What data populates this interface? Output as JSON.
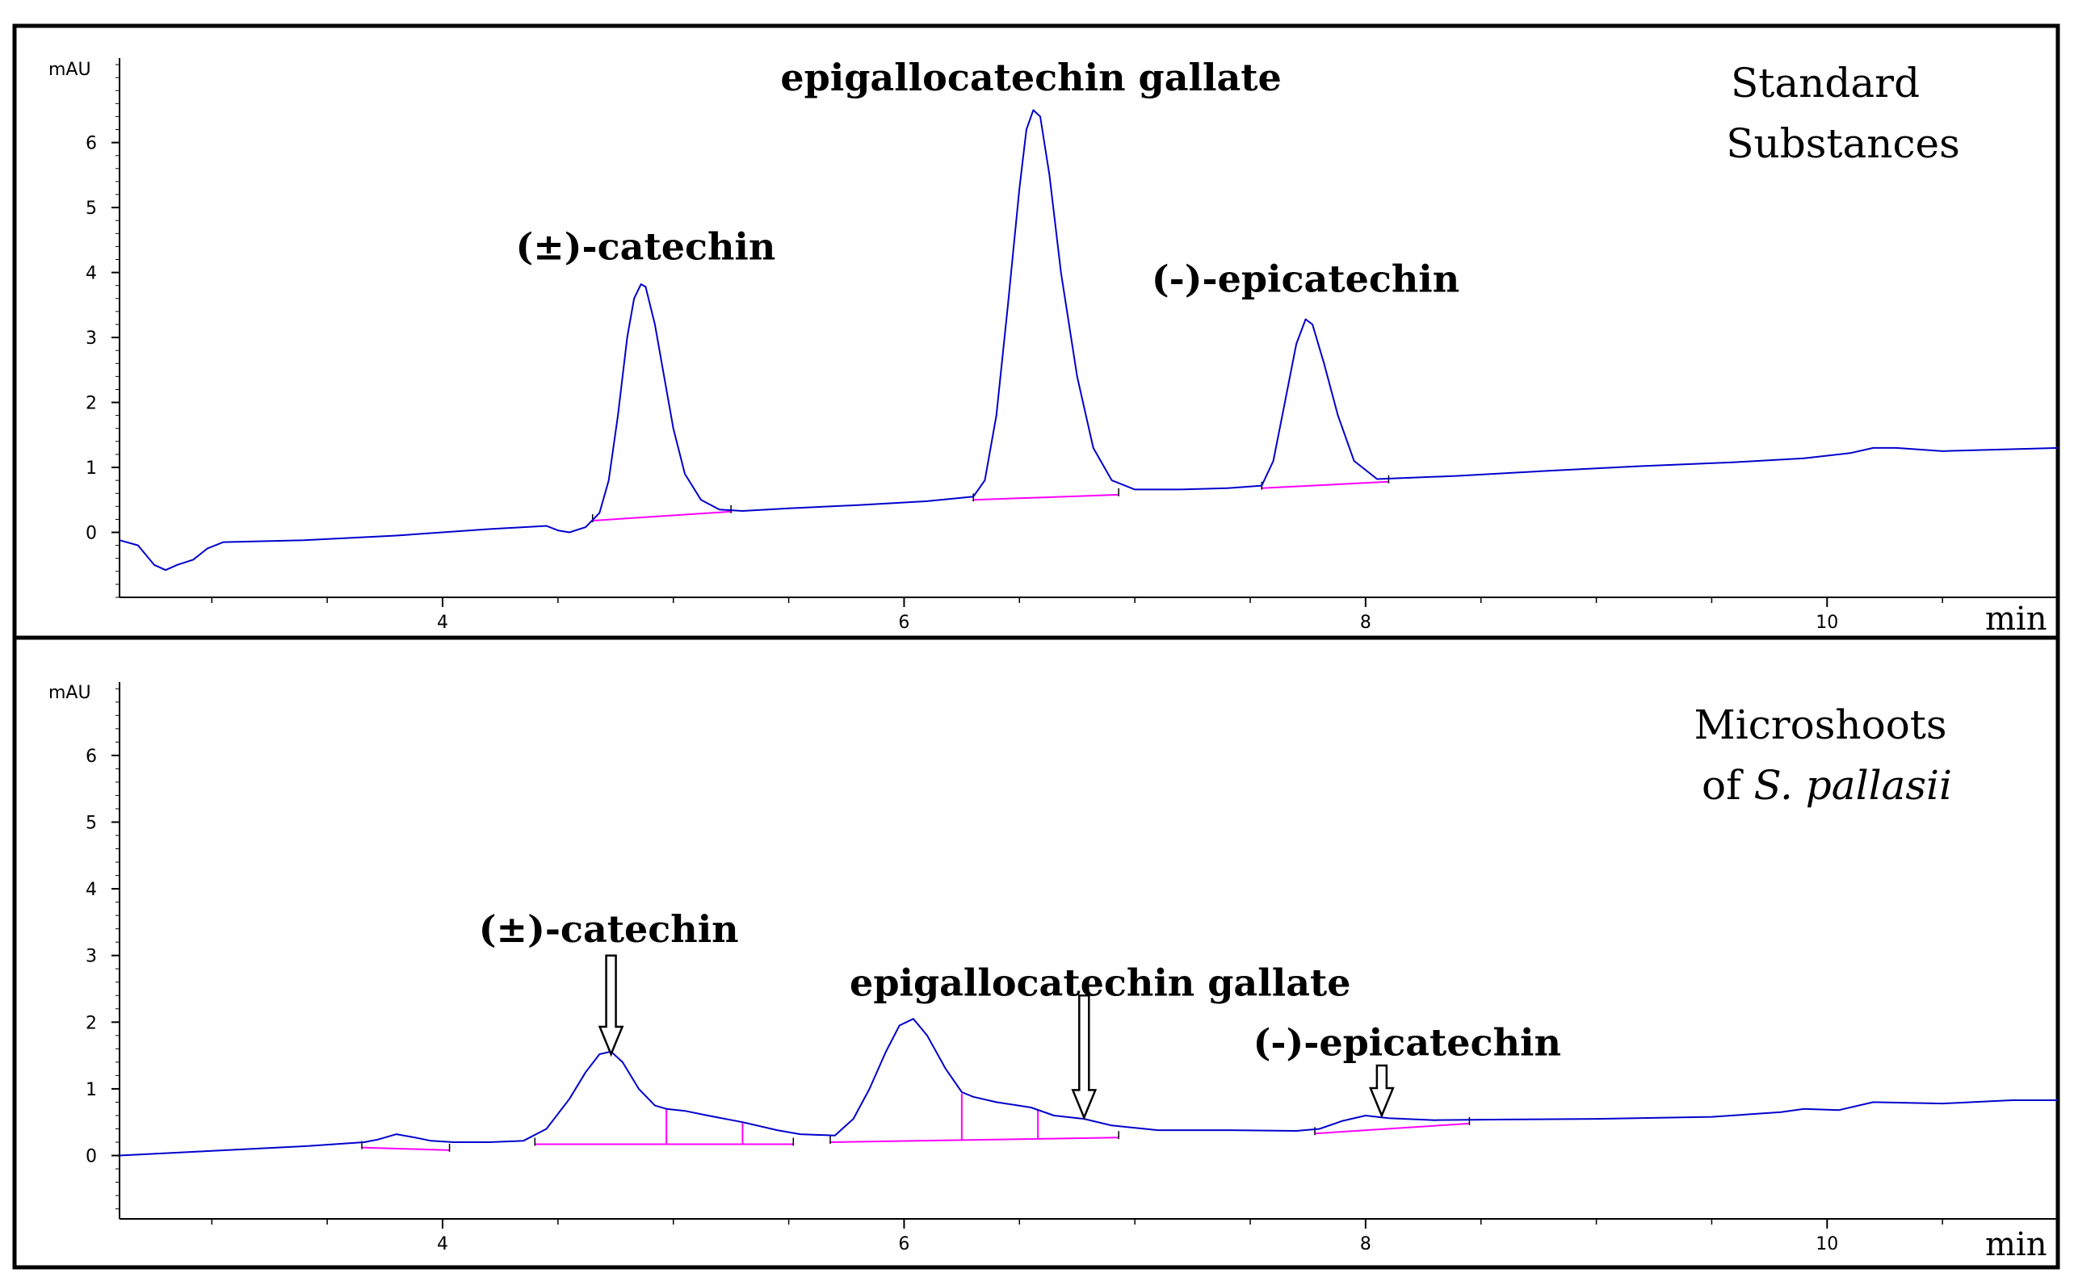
{
  "colors": {
    "trace": "#0000cc",
    "integration": "#ff00ff",
    "axis": "#000000",
    "background": "#ffffff"
  },
  "chart_data": [
    {
      "type": "line",
      "ylabel": "mAU",
      "xunit": "min",
      "xlim": [
        2.6,
        11.0
      ],
      "ylim": [
        -1.0,
        7.3
      ],
      "xticks": [
        4,
        6,
        8,
        10
      ],
      "yticks": [
        0,
        1,
        2,
        3,
        4,
        5,
        6
      ],
      "grid": false,
      "sample_label": [
        "Standard",
        "Substances"
      ],
      "series": [
        {
          "color": "#0000cc",
          "x": [
            2.6,
            2.68,
            2.75,
            2.8,
            2.85,
            2.92,
            2.98,
            3.05,
            3.4,
            3.8,
            4.2,
            4.45,
            4.5,
            4.55,
            4.62,
            4.68,
            4.72,
            4.76,
            4.8,
            4.83,
            4.86,
            4.88,
            4.92,
            4.96,
            5.0,
            5.05,
            5.12,
            5.2,
            5.3,
            5.5,
            5.8,
            6.1,
            6.3,
            6.35,
            6.4,
            6.45,
            6.5,
            6.53,
            6.56,
            6.59,
            6.63,
            6.68,
            6.75,
            6.82,
            6.9,
            7.0,
            7.2,
            7.4,
            7.55,
            7.6,
            7.65,
            7.7,
            7.74,
            7.77,
            7.82,
            7.88,
            7.95,
            8.05,
            8.4,
            8.8,
            9.2,
            9.6,
            9.9,
            10.1,
            10.2,
            10.3,
            10.5,
            10.7,
            11.0
          ],
          "y": [
            -0.12,
            -0.2,
            -0.5,
            -0.58,
            -0.5,
            -0.42,
            -0.25,
            -0.15,
            -0.12,
            -0.05,
            0.05,
            0.1,
            0.03,
            0.0,
            0.08,
            0.3,
            0.8,
            1.8,
            3.0,
            3.6,
            3.82,
            3.78,
            3.2,
            2.4,
            1.6,
            0.9,
            0.5,
            0.35,
            0.33,
            0.37,
            0.42,
            0.48,
            0.55,
            0.8,
            1.8,
            3.5,
            5.3,
            6.2,
            6.5,
            6.4,
            5.5,
            4.0,
            2.4,
            1.3,
            0.8,
            0.66,
            0.66,
            0.68,
            0.72,
            1.1,
            2.0,
            2.9,
            3.28,
            3.2,
            2.6,
            1.8,
            1.1,
            0.82,
            0.87,
            0.95,
            1.02,
            1.08,
            1.14,
            1.22,
            1.3,
            1.3,
            1.25,
            1.27,
            1.3
          ]
        }
      ],
      "baselines": [
        {
          "x": [
            4.65,
            5.25
          ],
          "y": [
            0.18,
            0.32
          ]
        },
        {
          "x": [
            6.3,
            6.93
          ],
          "y": [
            0.5,
            0.58
          ]
        },
        {
          "x": [
            7.55,
            8.1
          ],
          "y": [
            0.68,
            0.78
          ]
        }
      ],
      "annotations": [
        {
          "text": "(±)-catechin",
          "x": 4.88,
          "y": 4.2
        },
        {
          "text": "epigallocatechin gallate",
          "x": 6.55,
          "y": 6.8
        },
        {
          "text": "(-)-epicatechin",
          "x": 7.74,
          "y": 3.7
        }
      ],
      "arrows": []
    },
    {
      "type": "line",
      "ylabel": "mAU",
      "xunit": "min",
      "xlim": [
        2.6,
        11.0
      ],
      "ylim": [
        -0.95,
        7.1
      ],
      "xticks": [
        4,
        6,
        8,
        10
      ],
      "yticks": [
        0,
        1,
        2,
        3,
        4,
        5,
        6
      ],
      "grid": false,
      "sample_label": [
        "Microshoots",
        "of S. pallasii"
      ],
      "series": [
        {
          "color": "#0000cc",
          "x": [
            2.6,
            3.0,
            3.4,
            3.66,
            3.72,
            3.8,
            3.88,
            3.95,
            4.05,
            4.2,
            4.35,
            4.45,
            4.55,
            4.62,
            4.68,
            4.73,
            4.78,
            4.85,
            4.92,
            4.97,
            5.05,
            5.15,
            5.3,
            5.45,
            5.55,
            5.7,
            5.78,
            5.85,
            5.92,
            5.98,
            6.04,
            6.1,
            6.18,
            6.25,
            6.3,
            6.4,
            6.55,
            6.65,
            6.78,
            6.9,
            7.1,
            7.4,
            7.7,
            7.8,
            7.9,
            8.0,
            8.1,
            8.3,
            8.6,
            9.0,
            9.5,
            9.8,
            9.9,
            10.05,
            10.2,
            10.5,
            10.8,
            11.0
          ],
          "y": [
            0.0,
            0.07,
            0.14,
            0.2,
            0.24,
            0.32,
            0.27,
            0.22,
            0.2,
            0.2,
            0.22,
            0.4,
            0.85,
            1.25,
            1.52,
            1.56,
            1.4,
            1.0,
            0.75,
            0.7,
            0.67,
            0.6,
            0.5,
            0.38,
            0.32,
            0.3,
            0.55,
            1.0,
            1.55,
            1.95,
            2.05,
            1.8,
            1.3,
            0.95,
            0.88,
            0.8,
            0.72,
            0.6,
            0.55,
            0.45,
            0.38,
            0.38,
            0.37,
            0.4,
            0.52,
            0.6,
            0.56,
            0.53,
            0.54,
            0.55,
            0.58,
            0.65,
            0.7,
            0.68,
            0.8,
            0.78,
            0.83,
            0.83
          ]
        }
      ],
      "baselines": [
        {
          "x": [
            3.65,
            4.03
          ],
          "y": [
            0.12,
            0.08
          ]
        },
        {
          "x": [
            4.4,
            5.52
          ],
          "y": [
            0.17,
            0.17
          ]
        },
        {
          "x": [
            5.68,
            6.93
          ],
          "y": [
            0.2,
            0.27
          ]
        },
        {
          "x": [
            7.78,
            8.45
          ],
          "y": [
            0.33,
            0.48
          ]
        }
      ],
      "dividers": [
        {
          "x": 4.97,
          "y0": 0.17,
          "y1": 0.7
        },
        {
          "x": 5.3,
          "y0": 0.17,
          "y1": 0.5
        },
        {
          "x": 6.25,
          "y0": 0.23,
          "y1": 0.93
        },
        {
          "x": 6.58,
          "y0": 0.25,
          "y1": 0.68
        }
      ],
      "annotations": [
        {
          "text": "(±)-catechin",
          "x": 4.72,
          "y": 3.2
        },
        {
          "text": "epigallocatechin gallate",
          "x": 6.85,
          "y": 2.4
        },
        {
          "text": "(-)-epicatechin",
          "x": 8.18,
          "y": 1.5
        }
      ],
      "arrows": [
        {
          "x": 4.73,
          "ytop": 3.0,
          "ytip": 1.52
        },
        {
          "x": 6.78,
          "ytop": 2.4,
          "ytip": 0.57
        },
        {
          "x": 8.07,
          "ytop": 1.35,
          "ytip": 0.6
        }
      ]
    }
  ]
}
